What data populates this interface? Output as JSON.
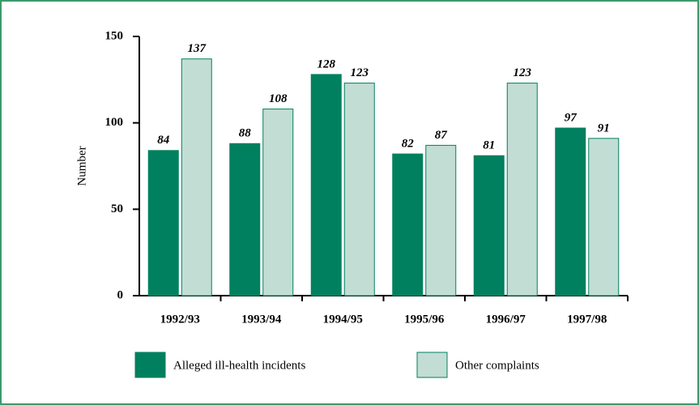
{
  "chart_data": {
    "type": "bar",
    "y_label": "Number",
    "categories": [
      "1992/93",
      "1993/94",
      "1994/95",
      "1995/96",
      "1996/97",
      "1997/98"
    ],
    "series": [
      {
        "name": "Alleged ill-health incidents",
        "color": "#00805e",
        "values": [
          84,
          88,
          128,
          82,
          81,
          97
        ]
      },
      {
        "name": "Other complaints",
        "color": "#c2ddd4",
        "values": [
          137,
          108,
          123,
          87,
          123,
          91
        ]
      }
    ],
    "ylim": [
      0,
      150
    ],
    "yticks": [
      0,
      50,
      100,
      150
    ],
    "legend": "bottom",
    "data_labels": true
  }
}
